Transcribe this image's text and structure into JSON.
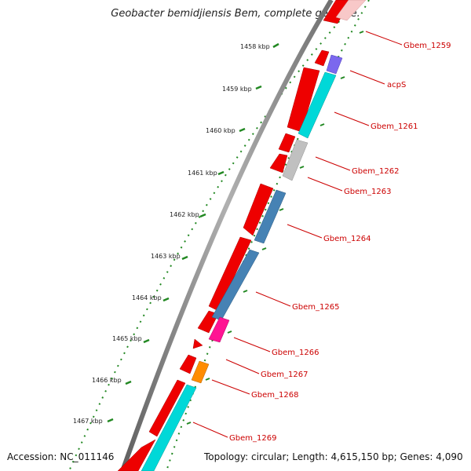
{
  "title": "Geobacter bemidjiensis Bem, complete genome.",
  "footer": {
    "accession": "Accession: NC_011146",
    "summary": "Topology: circular; Length: 4,615,150 bp; Genes: 4,090"
  },
  "colors": {
    "forward_cds": "#ee0000",
    "backbone": "#808080",
    "tick_green": "#228822",
    "label_red": "#cc0000",
    "cyan": "#00d8d8",
    "steel_blue": "#4682b4",
    "grey": "#c0c0c0",
    "purple": "#7b68ee",
    "magenta": "#ff1493",
    "orange": "#ff8c00",
    "pink": "#f8c8c8"
  },
  "scale_ticks": [
    "1458 kbp",
    "1459 kbp",
    "1460 kbp",
    "1461 kbp",
    "1462 kbp",
    "1463 kbp",
    "1464 kbp",
    "1465 kbp",
    "1466 kbp",
    "1467 kbp"
  ],
  "gene_labels": [
    "Gbem_1259",
    "acpS",
    "Gbem_1261",
    "Gbem_1262",
    "Gbem_1263",
    "Gbem_1264",
    "Gbem_1265",
    "Gbem_1266",
    "Gbem_1267",
    "Gbem_1268",
    "Gbem_1269"
  ]
}
